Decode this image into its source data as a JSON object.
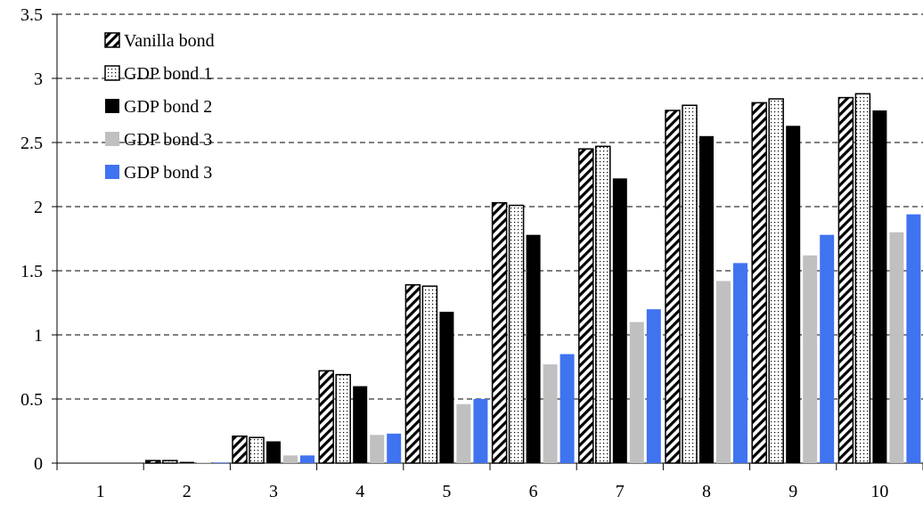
{
  "chart_data": {
    "type": "bar",
    "categories": [
      "1",
      "2",
      "3",
      "4",
      "5",
      "6",
      "7",
      "8",
      "9",
      "10"
    ],
    "ylim": [
      0,
      3.5
    ],
    "yticks": [
      "0",
      "0.5",
      "1",
      "1.5",
      "2",
      "2.5",
      "3",
      "3.5"
    ],
    "grid": true,
    "legend_position": "top-left",
    "series": [
      {
        "name": "Vanilla bond",
        "pattern": "hatch",
        "color": "#000000",
        "values": [
          0,
          0.02,
          0.21,
          0.72,
          1.39,
          2.03,
          2.45,
          2.75,
          2.81,
          2.85
        ]
      },
      {
        "name": "GDP bond 1",
        "pattern": "dots",
        "color": "#000000",
        "values": [
          0,
          0.02,
          0.2,
          0.69,
          1.38,
          2.01,
          2.47,
          2.79,
          2.84,
          2.88
        ]
      },
      {
        "name": "GDP bond 2",
        "pattern": "solid",
        "color": "#000000",
        "values": [
          0,
          0.01,
          0.17,
          0.6,
          1.18,
          1.78,
          2.22,
          2.55,
          2.63,
          2.75
        ]
      },
      {
        "name": "GDP bond 3",
        "pattern": "solid",
        "color": "#c0c0c0",
        "values": [
          0,
          0.005,
          0.06,
          0.22,
          0.46,
          0.77,
          1.1,
          1.42,
          1.62,
          1.8
        ]
      },
      {
        "name": "GDP bond 3",
        "pattern": "solid",
        "color": "#3f73f0",
        "values": [
          0,
          0.005,
          0.06,
          0.23,
          0.5,
          0.85,
          1.2,
          1.56,
          1.78,
          1.94
        ]
      }
    ]
  }
}
